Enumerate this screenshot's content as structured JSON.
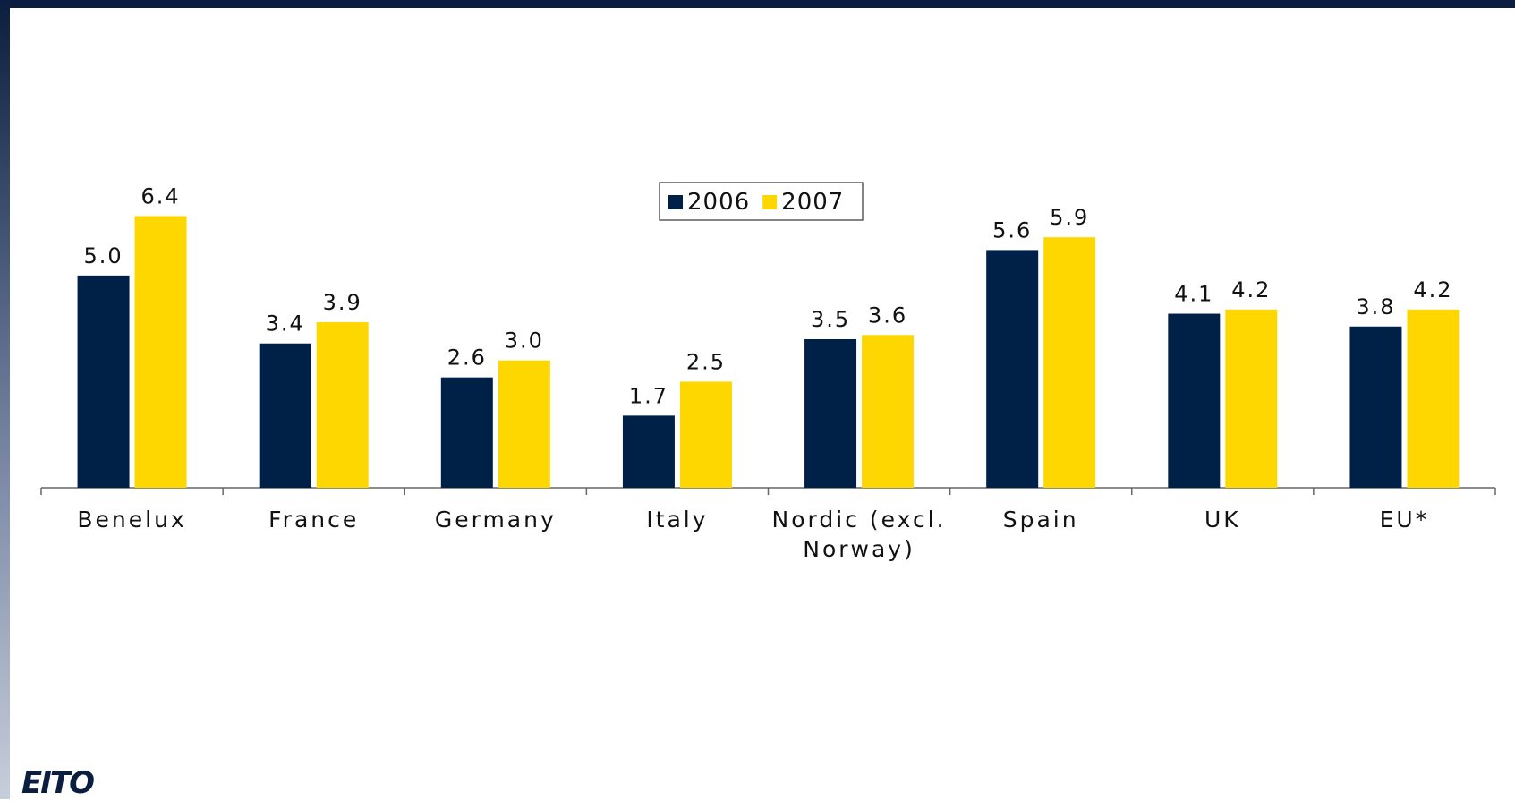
{
  "chart_data": {
    "type": "bar",
    "categories": [
      "Benelux",
      "France",
      "Germany",
      "Italy",
      "Nordic (excl. Norway)",
      "Spain",
      "UK",
      "EU*"
    ],
    "series": [
      {
        "name": "2006",
        "color": "#002147",
        "values": [
          5.0,
          3.4,
          2.6,
          1.7,
          3.5,
          5.6,
          4.1,
          3.8
        ],
        "value_labels": [
          "5.0",
          "3.4",
          "2.6",
          "1.7",
          "3.5",
          "5.6",
          "4.1",
          "3.8"
        ]
      },
      {
        "name": "2007",
        "color": "#ffd700",
        "values": [
          6.4,
          3.9,
          3.0,
          2.5,
          3.6,
          5.9,
          4.2,
          4.2
        ],
        "value_labels": [
          "6.4",
          "3.9",
          "3.0",
          "2.5",
          "3.6",
          "5.9",
          "4.2",
          "4.2"
        ]
      }
    ],
    "ylim": [
      0,
      7
    ],
    "legend": "top-center"
  },
  "logo": "EITO"
}
